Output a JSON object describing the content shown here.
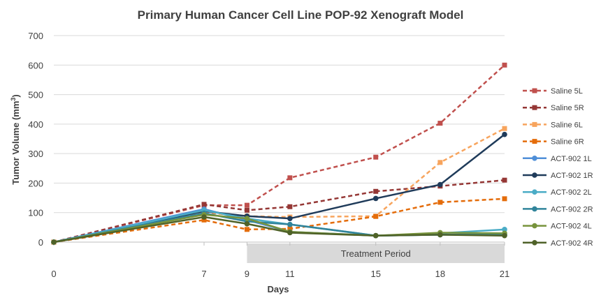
{
  "chart_data": {
    "type": "line",
    "title": "Primary Human Cancer Cell Line POP-92 Xenograft Model",
    "xlabel": "Days",
    "ylabel": "Tumor Volume (mm",
    "ylabel_sup": "3",
    "ylabel_close": ")",
    "x": [
      0,
      7,
      9,
      11,
      15,
      18,
      21
    ],
    "x_tick_labels": [
      "0",
      "7",
      "9",
      "11",
      "15",
      "18",
      "21"
    ],
    "ylim": [
      0,
      700
    ],
    "y_ticks": [
      0,
      100,
      200,
      300,
      400,
      500,
      600,
      700
    ],
    "grid": "horizontal",
    "legend_position": "right",
    "annotation": {
      "label": "Treatment Period",
      "x_start": 9,
      "x_end": 21
    },
    "series": [
      {
        "name": "Saline 5L",
        "color": "#c0504d",
        "dashed": true,
        "values": [
          0,
          125,
          125,
          218,
          288,
          403,
          600
        ]
      },
      {
        "name": "Saline 5R",
        "color": "#953735",
        "dashed": true,
        "values": [
          0,
          128,
          108,
          120,
          172,
          190,
          210
        ]
      },
      {
        "name": "Saline 6L",
        "color": "#f7a45d",
        "dashed": true,
        "values": [
          0,
          100,
          88,
          85,
          88,
          270,
          385
        ]
      },
      {
        "name": "Saline 6R",
        "color": "#e46c0a",
        "dashed": true,
        "values": [
          0,
          75,
          43,
          45,
          87,
          135,
          147
        ]
      },
      {
        "name": "ACT-902 1L",
        "color": "#4f8fd8",
        "dashed": false,
        "values": [
          0,
          112,
          75,
          35,
          22,
          25,
          25
        ]
      },
      {
        "name": "ACT-902 1R",
        "color": "#1f3b5a",
        "dashed": false,
        "values": [
          0,
          105,
          88,
          80,
          148,
          195,
          365
        ]
      },
      {
        "name": "ACT-902 2L",
        "color": "#4bacc6",
        "dashed": false,
        "values": [
          0,
          108,
          80,
          60,
          22,
          30,
          43
        ]
      },
      {
        "name": "ACT-902 2R",
        "color": "#31849b",
        "dashed": false,
        "values": [
          0,
          98,
          70,
          60,
          22,
          25,
          25
        ]
      },
      {
        "name": "ACT-902 4L",
        "color": "#77933c",
        "dashed": false,
        "values": [
          0,
          93,
          80,
          35,
          22,
          32,
          30
        ]
      },
      {
        "name": "ACT-902 4R",
        "color": "#4f6228",
        "dashed": false,
        "values": [
          0,
          85,
          62,
          32,
          22,
          25,
          22
        ]
      }
    ]
  }
}
